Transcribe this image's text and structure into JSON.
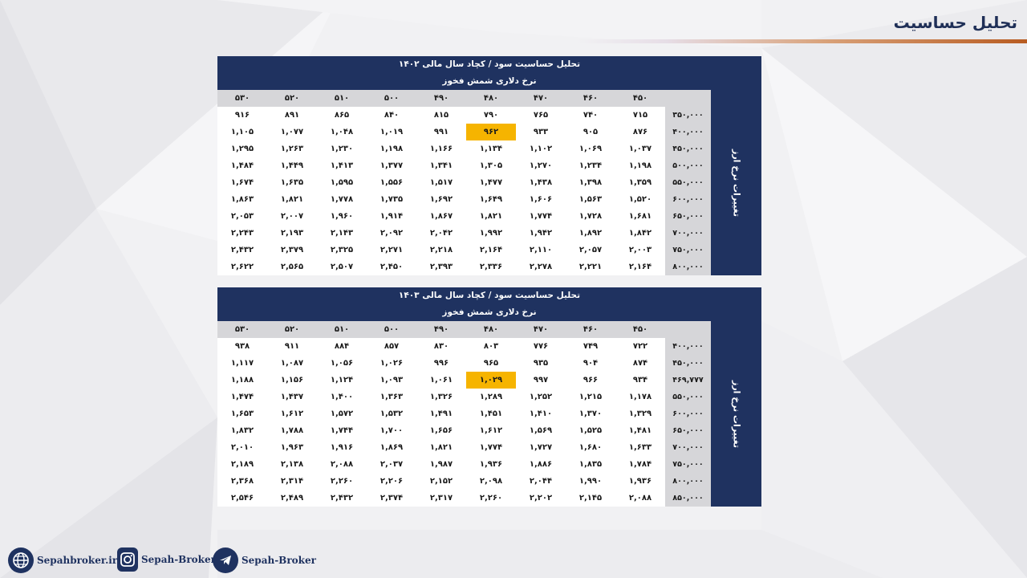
{
  "page": {
    "title": "تحلیل حساسیت"
  },
  "tables": [
    {
      "title": "تحلیل حساسیت سود / کچاد سال مالی ۱۴۰۲",
      "subtitle": "نرخ دلاری شمش فخوز",
      "side_label": "تغییرات نرخ ارز",
      "columns": [
        "۵۳۰",
        "۵۲۰",
        "۵۱۰",
        "۵۰۰",
        "۴۹۰",
        "۴۸۰",
        "۴۷۰",
        "۴۶۰",
        "۴۵۰"
      ],
      "highlight": {
        "row": 1,
        "col": 5
      },
      "rows": [
        {
          "label": "۳۵۰,۰۰۰",
          "values": [
            "۹۱۶",
            "۸۹۱",
            "۸۶۵",
            "۸۴۰",
            "۸۱۵",
            "۷۹۰",
            "۷۶۵",
            "۷۴۰",
            "۷۱۵"
          ]
        },
        {
          "label": "۴۰۰,۰۰۰",
          "values": [
            "۱,۱۰۵",
            "۱,۰۷۷",
            "۱,۰۴۸",
            "۱,۰۱۹",
            "۹۹۱",
            "۹۶۲",
            "۹۳۳",
            "۹۰۵",
            "۸۷۶"
          ]
        },
        {
          "label": "۴۵۰,۰۰۰",
          "values": [
            "۱,۲۹۵",
            "۱,۲۶۳",
            "۱,۲۳۰",
            "۱,۱۹۸",
            "۱,۱۶۶",
            "۱,۱۳۴",
            "۱,۱۰۲",
            "۱,۰۶۹",
            "۱,۰۳۷"
          ]
        },
        {
          "label": "۵۰۰,۰۰۰",
          "values": [
            "۱,۴۸۴",
            "۱,۴۴۹",
            "۱,۴۱۳",
            "۱,۳۷۷",
            "۱,۳۴۱",
            "۱,۳۰۵",
            "۱,۲۷۰",
            "۱,۲۳۴",
            "۱,۱۹۸"
          ]
        },
        {
          "label": "۵۵۰,۰۰۰",
          "values": [
            "۱,۶۷۴",
            "۱,۶۳۵",
            "۱,۵۹۵",
            "۱,۵۵۶",
            "۱,۵۱۷",
            "۱,۴۷۷",
            "۱,۴۳۸",
            "۱,۳۹۸",
            "۱,۳۵۹"
          ]
        },
        {
          "label": "۶۰۰,۰۰۰",
          "values": [
            "۱,۸۶۳",
            "۱,۸۲۱",
            "۱,۷۷۸",
            "۱,۷۳۵",
            "۱,۶۹۲",
            "۱,۶۴۹",
            "۱,۶۰۶",
            "۱,۵۶۳",
            "۱,۵۲۰"
          ]
        },
        {
          "label": "۶۵۰,۰۰۰",
          "values": [
            "۲,۰۵۳",
            "۲,۰۰۷",
            "۱,۹۶۰",
            "۱,۹۱۴",
            "۱,۸۶۷",
            "۱,۸۲۱",
            "۱,۷۷۴",
            "۱,۷۲۸",
            "۱,۶۸۱"
          ]
        },
        {
          "label": "۷۰۰,۰۰۰",
          "values": [
            "۲,۲۴۳",
            "۲,۱۹۳",
            "۲,۱۴۳",
            "۲,۰۹۲",
            "۲,۰۴۲",
            "۱,۹۹۲",
            "۱,۹۴۲",
            "۱,۸۹۲",
            "۱,۸۴۲"
          ]
        },
        {
          "label": "۷۵۰,۰۰۰",
          "values": [
            "۲,۴۳۲",
            "۲,۳۷۹",
            "۲,۳۲۵",
            "۲,۲۷۱",
            "۲,۲۱۸",
            "۲,۱۶۴",
            "۲,۱۱۰",
            "۲,۰۵۷",
            "۲,۰۰۳"
          ]
        },
        {
          "label": "۸۰۰,۰۰۰",
          "values": [
            "۲,۶۲۲",
            "۲,۵۶۵",
            "۲,۵۰۷",
            "۲,۴۵۰",
            "۲,۳۹۳",
            "۲,۳۳۶",
            "۲,۲۷۸",
            "۲,۲۲۱",
            "۲,۱۶۴"
          ]
        }
      ]
    },
    {
      "title": "تحلیل حساسیت سود / کچاد سال مالی ۱۴۰۳",
      "subtitle": "نرخ دلاری شمش فخوز",
      "side_label": "تغییرات نرخ ارز",
      "columns": [
        "۵۳۰",
        "۵۲۰",
        "۵۱۰",
        "۵۰۰",
        "۴۹۰",
        "۴۸۰",
        "۴۷۰",
        "۴۶۰",
        "۴۵۰"
      ],
      "highlight": {
        "row": 2,
        "col": 5
      },
      "rows": [
        {
          "label": "۴۰۰,۰۰۰",
          "values": [
            "۹۳۸",
            "۹۱۱",
            "۸۸۴",
            "۸۵۷",
            "۸۳۰",
            "۸۰۳",
            "۷۷۶",
            "۷۴۹",
            "۷۲۲"
          ]
        },
        {
          "label": "۴۵۰,۰۰۰",
          "values": [
            "۱,۱۱۷",
            "۱,۰۸۷",
            "۱,۰۵۶",
            "۱,۰۲۶",
            "۹۹۶",
            "۹۶۵",
            "۹۳۵",
            "۹۰۴",
            "۸۷۴"
          ]
        },
        {
          "label": "۴۶۹,۷۷۷",
          "values": [
            "۱,۱۸۸",
            "۱,۱۵۶",
            "۱,۱۲۴",
            "۱,۰۹۳",
            "۱,۰۶۱",
            "۱,۰۲۹",
            "۹۹۷",
            "۹۶۶",
            "۹۳۴"
          ]
        },
        {
          "label": "۵۵۰,۰۰۰",
          "values": [
            "۱,۴۷۴",
            "۱,۴۳۷",
            "۱,۴۰۰",
            "۱,۳۶۳",
            "۱,۳۲۶",
            "۱,۲۸۹",
            "۱,۲۵۲",
            "۱,۲۱۵",
            "۱,۱۷۸"
          ]
        },
        {
          "label": "۶۰۰,۰۰۰",
          "values": [
            "۱,۶۵۳",
            "۱,۶۱۲",
            "۱,۵۷۲",
            "۱,۵۳۲",
            "۱,۴۹۱",
            "۱,۴۵۱",
            "۱,۴۱۰",
            "۱,۳۷۰",
            "۱,۳۲۹"
          ]
        },
        {
          "label": "۶۵۰,۰۰۰",
          "values": [
            "۱,۸۳۲",
            "۱,۷۸۸",
            "۱,۷۴۴",
            "۱,۷۰۰",
            "۱,۶۵۶",
            "۱,۶۱۲",
            "۱,۵۶۹",
            "۱,۵۲۵",
            "۱,۴۸۱"
          ]
        },
        {
          "label": "۷۰۰,۰۰۰",
          "values": [
            "۲,۰۱۰",
            "۱,۹۶۳",
            "۱,۹۱۶",
            "۱,۸۶۹",
            "۱,۸۲۱",
            "۱,۷۷۴",
            "۱,۷۲۷",
            "۱,۶۸۰",
            "۱,۶۳۳"
          ]
        },
        {
          "label": "۷۵۰,۰۰۰",
          "values": [
            "۲,۱۸۹",
            "۲,۱۳۸",
            "۲,۰۸۸",
            "۲,۰۳۷",
            "۱,۹۸۷",
            "۱,۹۳۶",
            "۱,۸۸۶",
            "۱,۸۳۵",
            "۱,۷۸۴"
          ]
        },
        {
          "label": "۸۰۰,۰۰۰",
          "values": [
            "۲,۳۶۸",
            "۲,۳۱۴",
            "۲,۲۶۰",
            "۲,۲۰۶",
            "۲,۱۵۲",
            "۲,۰۹۸",
            "۲,۰۴۴",
            "۱,۹۹۰",
            "۱,۹۳۶"
          ]
        },
        {
          "label": "۸۵۰,۰۰۰",
          "values": [
            "۲,۵۴۶",
            "۲,۴۸۹",
            "۲,۴۳۲",
            "۲,۳۷۴",
            "۲,۳۱۷",
            "۲,۲۶۰",
            "۲,۲۰۲",
            "۲,۱۴۵",
            "۲,۰۸۸"
          ]
        }
      ]
    }
  ],
  "footer": {
    "website": "Sepahbroker.ir",
    "instagram": "Sepah-Broker",
    "telegram": "Sepah-Broker",
    "icons": [
      "globe-icon",
      "instagram-icon",
      "telegram-icon"
    ]
  },
  "colors": {
    "navy": "#1f3260",
    "highlight": "#f6b400",
    "header_gray": "#d6d6d9",
    "accent": "#b85c22"
  }
}
